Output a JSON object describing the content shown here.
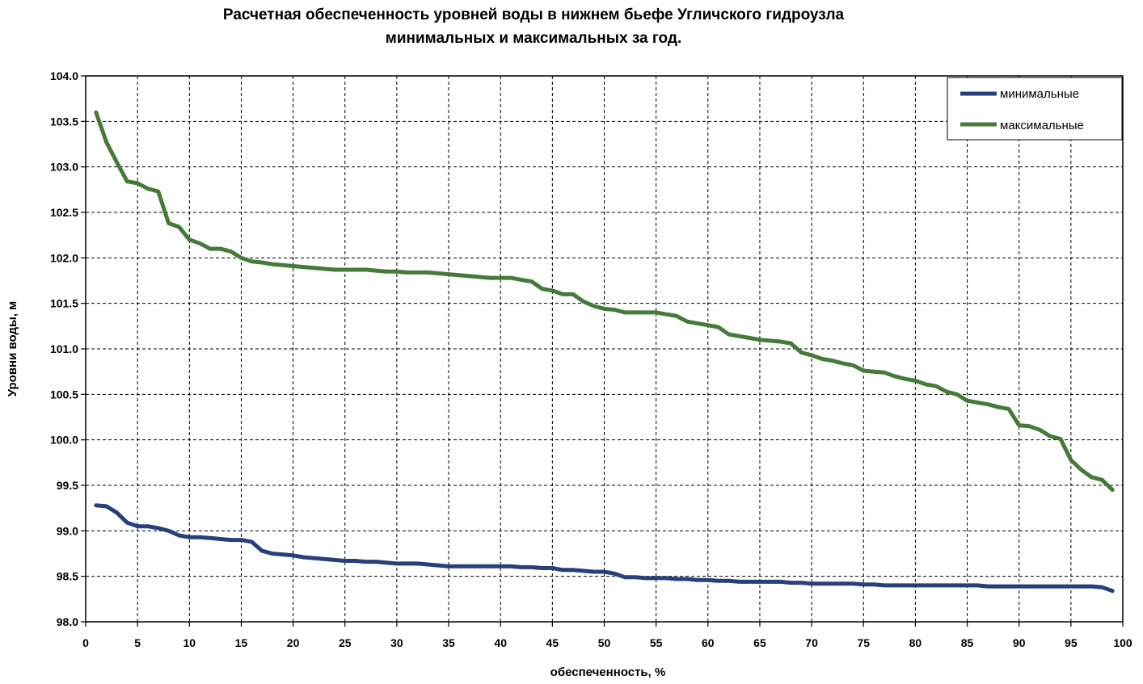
{
  "chart_data": {
    "type": "line",
    "title_lines": [
      "Расчетная обеспеченность уровней воды в нижнем бьефе Угличского гидроузла",
      "минимальных и максимальных за год."
    ],
    "xlabel": "обеспеченность, %",
    "ylabel": "Уровни воды, м",
    "xlim": [
      0,
      100
    ],
    "ylim": [
      98.0,
      104.0
    ],
    "x_ticks": [
      "0",
      "5",
      "10",
      "15",
      "20",
      "25",
      "30",
      "35",
      "40",
      "45",
      "50",
      "55",
      "60",
      "65",
      "70",
      "75",
      "80",
      "85",
      "90",
      "95",
      "100"
    ],
    "y_ticks": [
      "98.0",
      "98.5",
      "99.0",
      "99.5",
      "100.0",
      "100.5",
      "101.0",
      "101.5",
      "102.0",
      "102.5",
      "103.0",
      "103.5",
      "104.0"
    ],
    "grid": true,
    "legend_position": "top-right",
    "series": [
      {
        "name": "минимальные",
        "color": "#27407a",
        "points": [
          [
            1,
            99.28
          ],
          [
            2,
            99.27
          ],
          [
            3,
            99.2
          ],
          [
            4,
            99.09
          ],
          [
            5,
            99.05
          ],
          [
            6,
            99.05
          ],
          [
            7,
            99.03
          ],
          [
            8,
            99.0
          ],
          [
            9,
            98.95
          ],
          [
            10,
            98.93
          ],
          [
            11,
            98.93
          ],
          [
            12,
            98.92
          ],
          [
            13,
            98.91
          ],
          [
            14,
            98.9
          ],
          [
            15,
            98.9
          ],
          [
            16,
            98.88
          ],
          [
            17,
            98.78
          ],
          [
            18,
            98.75
          ],
          [
            19,
            98.74
          ],
          [
            20,
            98.73
          ],
          [
            21,
            98.71
          ],
          [
            22,
            98.7
          ],
          [
            23,
            98.69
          ],
          [
            24,
            98.68
          ],
          [
            25,
            98.67
          ],
          [
            26,
            98.67
          ],
          [
            27,
            98.66
          ],
          [
            28,
            98.66
          ],
          [
            29,
            98.65
          ],
          [
            30,
            98.64
          ],
          [
            31,
            98.64
          ],
          [
            32,
            98.64
          ],
          [
            33,
            98.63
          ],
          [
            34,
            98.62
          ],
          [
            35,
            98.61
          ],
          [
            36,
            98.61
          ],
          [
            37,
            98.61
          ],
          [
            38,
            98.61
          ],
          [
            39,
            98.61
          ],
          [
            40,
            98.61
          ],
          [
            41,
            98.61
          ],
          [
            42,
            98.6
          ],
          [
            43,
            98.6
          ],
          [
            44,
            98.59
          ],
          [
            45,
            98.59
          ],
          [
            46,
            98.57
          ],
          [
            47,
            98.57
          ],
          [
            48,
            98.56
          ],
          [
            49,
            98.55
          ],
          [
            50,
            98.55
          ],
          [
            51,
            98.53
          ],
          [
            52,
            98.49
          ],
          [
            53,
            98.49
          ],
          [
            54,
            98.48
          ],
          [
            55,
            98.48
          ],
          [
            56,
            98.48
          ],
          [
            57,
            98.47
          ],
          [
            58,
            98.47
          ],
          [
            59,
            98.46
          ],
          [
            60,
            98.46
          ],
          [
            61,
            98.45
          ],
          [
            62,
            98.45
          ],
          [
            63,
            98.44
          ],
          [
            64,
            98.44
          ],
          [
            65,
            98.44
          ],
          [
            66,
            98.44
          ],
          [
            67,
            98.44
          ],
          [
            68,
            98.43
          ],
          [
            69,
            98.43
          ],
          [
            70,
            98.42
          ],
          [
            71,
            98.42
          ],
          [
            72,
            98.42
          ],
          [
            73,
            98.42
          ],
          [
            74,
            98.42
          ],
          [
            75,
            98.41
          ],
          [
            76,
            98.41
          ],
          [
            77,
            98.4
          ],
          [
            78,
            98.4
          ],
          [
            79,
            98.4
          ],
          [
            80,
            98.4
          ],
          [
            81,
            98.4
          ],
          [
            82,
            98.4
          ],
          [
            83,
            98.4
          ],
          [
            84,
            98.4
          ],
          [
            85,
            98.4
          ],
          [
            86,
            98.4
          ],
          [
            87,
            98.39
          ],
          [
            88,
            98.39
          ],
          [
            89,
            98.39
          ],
          [
            90,
            98.39
          ],
          [
            91,
            98.39
          ],
          [
            92,
            98.39
          ],
          [
            93,
            98.39
          ],
          [
            94,
            98.39
          ],
          [
            95,
            98.39
          ],
          [
            96,
            98.39
          ],
          [
            97,
            98.39
          ],
          [
            98,
            98.38
          ],
          [
            99,
            98.34
          ]
        ]
      },
      {
        "name": "максимальные",
        "color": "#457a38",
        "points": [
          [
            1,
            103.6
          ],
          [
            2,
            103.27
          ],
          [
            3,
            103.05
          ],
          [
            4,
            102.84
          ],
          [
            5,
            102.82
          ],
          [
            6,
            102.76
          ],
          [
            7,
            102.73
          ],
          [
            8,
            102.38
          ],
          [
            9,
            102.34
          ],
          [
            10,
            102.2
          ],
          [
            11,
            102.16
          ],
          [
            12,
            102.1
          ],
          [
            13,
            102.1
          ],
          [
            14,
            102.07
          ],
          [
            15,
            102.0
          ],
          [
            16,
            101.96
          ],
          [
            17,
            101.95
          ],
          [
            18,
            101.93
          ],
          [
            19,
            101.92
          ],
          [
            20,
            101.91
          ],
          [
            21,
            101.9
          ],
          [
            22,
            101.89
          ],
          [
            23,
            101.88
          ],
          [
            24,
            101.87
          ],
          [
            25,
            101.87
          ],
          [
            26,
            101.87
          ],
          [
            27,
            101.87
          ],
          [
            28,
            101.86
          ],
          [
            29,
            101.85
          ],
          [
            30,
            101.85
          ],
          [
            31,
            101.84
          ],
          [
            32,
            101.84
          ],
          [
            33,
            101.84
          ],
          [
            34,
            101.83
          ],
          [
            35,
            101.82
          ],
          [
            36,
            101.81
          ],
          [
            37,
            101.8
          ],
          [
            38,
            101.79
          ],
          [
            39,
            101.78
          ],
          [
            40,
            101.78
          ],
          [
            41,
            101.78
          ],
          [
            42,
            101.76
          ],
          [
            43,
            101.74
          ],
          [
            44,
            101.66
          ],
          [
            45,
            101.64
          ],
          [
            46,
            101.6
          ],
          [
            47,
            101.6
          ],
          [
            48,
            101.52
          ],
          [
            49,
            101.47
          ],
          [
            50,
            101.44
          ],
          [
            51,
            101.43
          ],
          [
            52,
            101.4
          ],
          [
            53,
            101.4
          ],
          [
            54,
            101.4
          ],
          [
            55,
            101.4
          ],
          [
            56,
            101.38
          ],
          [
            57,
            101.36
          ],
          [
            58,
            101.3
          ],
          [
            59,
            101.28
          ],
          [
            60,
            101.26
          ],
          [
            61,
            101.24
          ],
          [
            62,
            101.16
          ],
          [
            63,
            101.14
          ],
          [
            64,
            101.12
          ],
          [
            65,
            101.1
          ],
          [
            66,
            101.09
          ],
          [
            67,
            101.08
          ],
          [
            68,
            101.06
          ],
          [
            69,
            100.96
          ],
          [
            70,
            100.93
          ],
          [
            71,
            100.89
          ],
          [
            72,
            100.87
          ],
          [
            73,
            100.84
          ],
          [
            74,
            100.82
          ],
          [
            75,
            100.76
          ],
          [
            76,
            100.75
          ],
          [
            77,
            100.74
          ],
          [
            78,
            100.7
          ],
          [
            79,
            100.67
          ],
          [
            80,
            100.65
          ],
          [
            81,
            100.61
          ],
          [
            82,
            100.59
          ],
          [
            83,
            100.53
          ],
          [
            84,
            100.5
          ],
          [
            85,
            100.43
          ],
          [
            86,
            100.41
          ],
          [
            87,
            100.39
          ],
          [
            88,
            100.36
          ],
          [
            89,
            100.34
          ],
          [
            90,
            100.16
          ],
          [
            91,
            100.15
          ],
          [
            92,
            100.11
          ],
          [
            93,
            100.04
          ],
          [
            94,
            100.01
          ],
          [
            95,
            99.78
          ],
          [
            96,
            99.67
          ],
          [
            97,
            99.59
          ],
          [
            98,
            99.56
          ],
          [
            99,
            99.45
          ]
        ]
      }
    ]
  }
}
